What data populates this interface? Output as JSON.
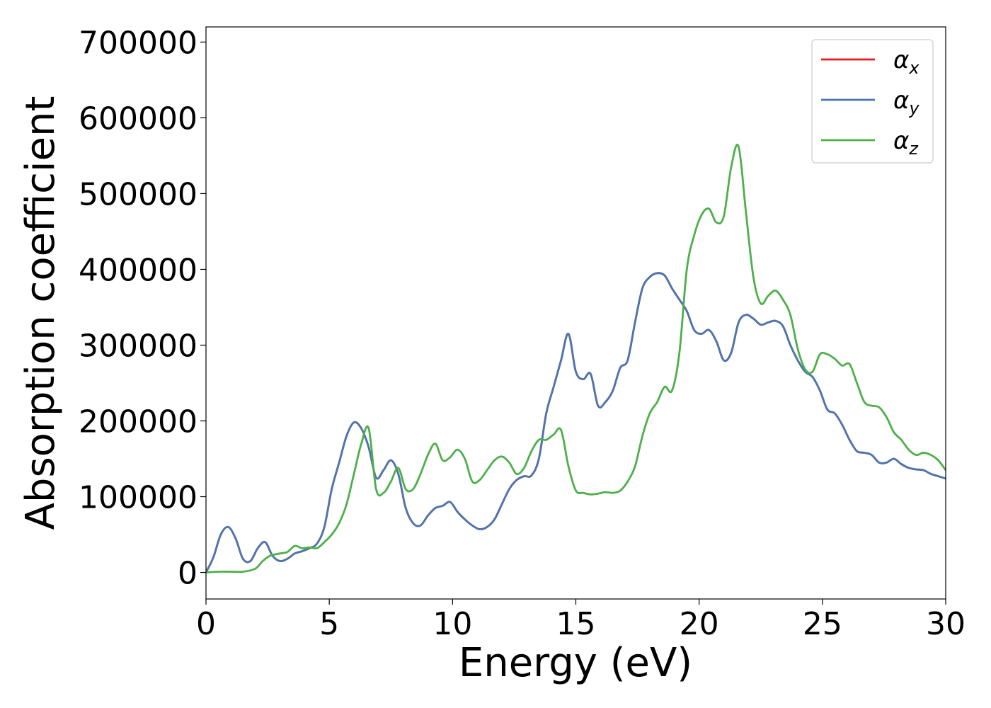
{
  "chart_data": {
    "type": "line",
    "title": "",
    "xlabel": "Energy (eV)",
    "ylabel": "Absorption coefficient",
    "xlim": [
      0,
      30
    ],
    "ylim": [
      -35000,
      720000
    ],
    "xticks": [
      0,
      5,
      10,
      15,
      20,
      25,
      30
    ],
    "yticks": [
      0,
      100000,
      200000,
      300000,
      400000,
      500000,
      600000,
      700000
    ],
    "grid": false,
    "legend": "top-right",
    "series": [
      {
        "name": "α_x",
        "legend_symbol": "α",
        "legend_sub": "x",
        "color": "#e41a1c",
        "x": [
          0,
          0.3,
          0.6,
          0.9,
          1.2,
          1.5,
          1.8,
          2.1,
          2.4,
          2.7,
          3.0,
          3.3,
          3.6,
          3.9,
          4.2,
          4.5,
          4.8,
          5.1,
          5.4,
          5.7,
          6.0,
          6.3,
          6.6,
          6.9,
          7.2,
          7.5,
          7.8,
          8.1,
          8.4,
          8.7,
          9.0,
          9.3,
          9.6,
          9.9,
          10.2,
          10.5,
          10.8,
          11.1,
          11.4,
          11.7,
          12.0,
          12.3,
          12.6,
          12.9,
          13.2,
          13.5,
          13.8,
          14.1,
          14.4,
          14.7,
          15.0,
          15.3,
          15.6,
          15.9,
          16.2,
          16.5,
          16.8,
          17.1,
          17.4,
          17.7,
          18.0,
          18.3,
          18.6,
          18.9,
          19.2,
          19.5,
          19.8,
          20.1,
          20.4,
          20.7,
          21.0,
          21.3,
          21.6,
          21.9,
          22.2,
          22.5,
          22.8,
          23.1,
          23.4,
          23.7,
          24.0,
          24.3,
          24.6,
          24.9,
          25.2,
          25.5,
          25.8,
          26.1,
          26.4,
          26.7,
          27.0,
          27.3,
          27.6,
          27.9,
          28.2,
          28.5,
          28.8,
          29.1,
          29.4,
          29.7,
          30.0
        ],
        "values": [
          0,
          20000,
          50000,
          60000,
          45000,
          18000,
          15000,
          32000,
          40000,
          22000,
          15000,
          18000,
          25000,
          28000,
          32000,
          38000,
          60000,
          110000,
          145000,
          180000,
          198000,
          190000,
          165000,
          125000,
          135000,
          148000,
          130000,
          85000,
          65000,
          62000,
          75000,
          85000,
          88000,
          93000,
          80000,
          70000,
          62000,
          57000,
          60000,
          70000,
          90000,
          110000,
          122000,
          127000,
          128000,
          150000,
          210000,
          245000,
          280000,
          315000,
          265000,
          255000,
          262000,
          220000,
          225000,
          240000,
          270000,
          280000,
          330000,
          375000,
          390000,
          395000,
          392000,
          375000,
          360000,
          345000,
          320000,
          315000,
          320000,
          305000,
          280000,
          290000,
          330000,
          340000,
          335000,
          327000,
          330000,
          332000,
          325000,
          300000,
          280000,
          265000,
          258000,
          240000,
          215000,
          210000,
          195000,
          175000,
          160000,
          158000,
          155000,
          145000,
          145000,
          150000,
          143000,
          138000,
          136000,
          135000,
          130000,
          127000,
          124000
        ]
      },
      {
        "name": "α_y",
        "legend_symbol": "α",
        "legend_sub": "y",
        "color": "#4a77b0",
        "x": [
          0,
          0.3,
          0.6,
          0.9,
          1.2,
          1.5,
          1.8,
          2.1,
          2.4,
          2.7,
          3.0,
          3.3,
          3.6,
          3.9,
          4.2,
          4.5,
          4.8,
          5.1,
          5.4,
          5.7,
          6.0,
          6.3,
          6.6,
          6.9,
          7.2,
          7.5,
          7.8,
          8.1,
          8.4,
          8.7,
          9.0,
          9.3,
          9.6,
          9.9,
          10.2,
          10.5,
          10.8,
          11.1,
          11.4,
          11.7,
          12.0,
          12.3,
          12.6,
          12.9,
          13.2,
          13.5,
          13.8,
          14.1,
          14.4,
          14.7,
          15.0,
          15.3,
          15.6,
          15.9,
          16.2,
          16.5,
          16.8,
          17.1,
          17.4,
          17.7,
          18.0,
          18.3,
          18.6,
          18.9,
          19.2,
          19.5,
          19.8,
          20.1,
          20.4,
          20.7,
          21.0,
          21.3,
          21.6,
          21.9,
          22.2,
          22.5,
          22.8,
          23.1,
          23.4,
          23.7,
          24.0,
          24.3,
          24.6,
          24.9,
          25.2,
          25.5,
          25.8,
          26.1,
          26.4,
          26.7,
          27.0,
          27.3,
          27.6,
          27.9,
          28.2,
          28.5,
          28.8,
          29.1,
          29.4,
          29.7,
          30.0
        ],
        "values": [
          0,
          20000,
          50000,
          60000,
          45000,
          18000,
          15000,
          32000,
          40000,
          22000,
          15000,
          18000,
          25000,
          28000,
          32000,
          38000,
          60000,
          110000,
          145000,
          180000,
          198000,
          190000,
          165000,
          125000,
          135000,
          148000,
          130000,
          85000,
          65000,
          62000,
          75000,
          85000,
          88000,
          93000,
          80000,
          70000,
          62000,
          57000,
          60000,
          70000,
          90000,
          110000,
          122000,
          127000,
          128000,
          150000,
          210000,
          245000,
          280000,
          315000,
          265000,
          255000,
          262000,
          220000,
          225000,
          240000,
          270000,
          280000,
          330000,
          375000,
          390000,
          395000,
          392000,
          375000,
          360000,
          345000,
          320000,
          315000,
          320000,
          305000,
          280000,
          290000,
          330000,
          340000,
          335000,
          327000,
          330000,
          332000,
          325000,
          300000,
          280000,
          265000,
          258000,
          240000,
          215000,
          210000,
          195000,
          175000,
          160000,
          158000,
          155000,
          145000,
          145000,
          150000,
          143000,
          138000,
          136000,
          135000,
          130000,
          127000,
          124000
        ]
      },
      {
        "name": "α_z",
        "legend_symbol": "α",
        "legend_sub": "z",
        "color": "#4daf4a",
        "x": [
          0,
          0.5,
          1.0,
          1.5,
          2.0,
          2.3,
          2.6,
          3.0,
          3.3,
          3.6,
          3.9,
          4.2,
          4.5,
          4.8,
          5.1,
          5.4,
          5.7,
          6.0,
          6.3,
          6.6,
          6.9,
          7.2,
          7.5,
          7.8,
          8.1,
          8.4,
          8.7,
          9.0,
          9.3,
          9.6,
          9.9,
          10.2,
          10.5,
          10.8,
          11.1,
          11.4,
          11.7,
          12.0,
          12.3,
          12.6,
          12.9,
          13.2,
          13.5,
          13.8,
          14.1,
          14.4,
          14.7,
          15.0,
          15.3,
          15.6,
          15.9,
          16.2,
          16.5,
          16.8,
          17.1,
          17.4,
          17.7,
          18.0,
          18.3,
          18.6,
          18.9,
          19.2,
          19.5,
          19.8,
          20.1,
          20.4,
          20.7,
          21.0,
          21.3,
          21.6,
          21.9,
          22.2,
          22.5,
          22.8,
          23.1,
          23.4,
          23.7,
          24.0,
          24.3,
          24.6,
          24.9,
          25.2,
          25.5,
          25.8,
          26.1,
          26.4,
          26.7,
          27.0,
          27.3,
          27.6,
          27.9,
          28.2,
          28.5,
          28.8,
          29.1,
          29.4,
          29.7,
          30.0
        ],
        "values": [
          0,
          1000,
          1000,
          1000,
          5000,
          15000,
          22000,
          25000,
          27000,
          35000,
          32000,
          33000,
          32000,
          40000,
          50000,
          65000,
          90000,
          130000,
          170000,
          190000,
          110000,
          105000,
          120000,
          138000,
          110000,
          110000,
          130000,
          155000,
          170000,
          148000,
          152000,
          162000,
          150000,
          120000,
          122000,
          135000,
          148000,
          153000,
          145000,
          130000,
          138000,
          160000,
          175000,
          175000,
          182000,
          188000,
          140000,
          108000,
          105000,
          103000,
          104000,
          106000,
          105000,
          108000,
          120000,
          140000,
          180000,
          210000,
          225000,
          245000,
          240000,
          290000,
          400000,
          445000,
          472000,
          480000,
          462000,
          470000,
          535000,
          562000,
          475000,
          390000,
          355000,
          365000,
          372000,
          360000,
          340000,
          295000,
          268000,
          265000,
          288000,
          288000,
          282000,
          273000,
          275000,
          250000,
          225000,
          220000,
          218000,
          205000,
          185000,
          175000,
          162000,
          155000,
          158000,
          155000,
          148000,
          135000
        ]
      }
    ]
  }
}
